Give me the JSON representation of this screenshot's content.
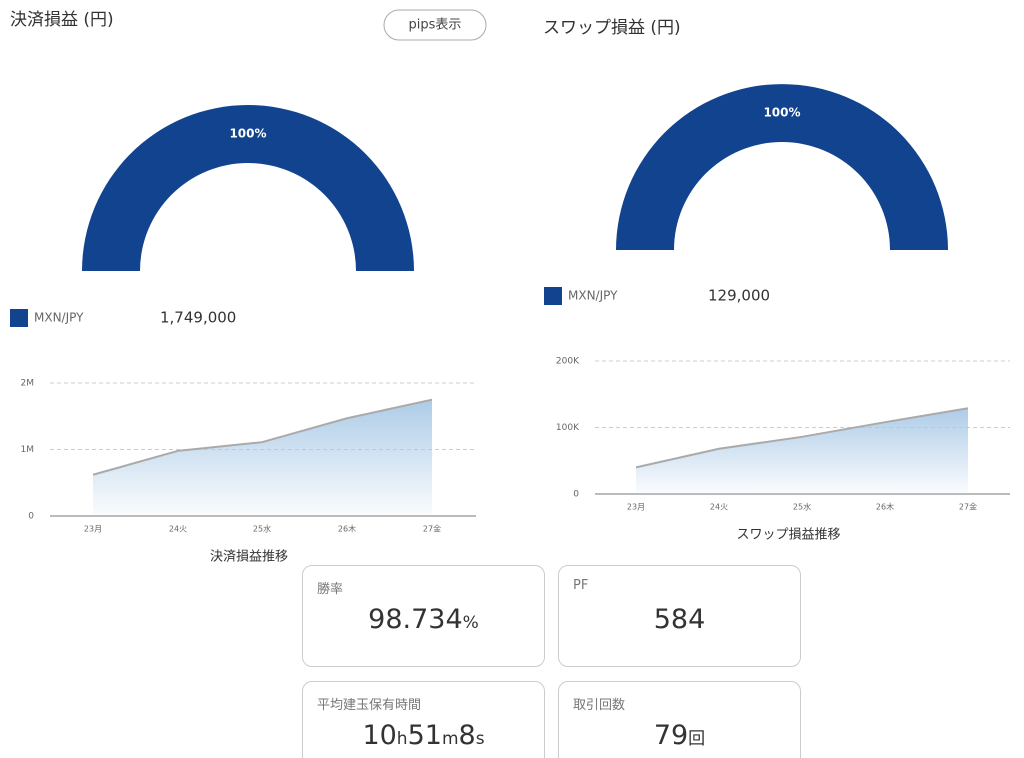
{
  "button": "pips表示",
  "panels": [
    {
      "title": "決済損益 (円)",
      "gauge": {
        "type": "pie",
        "series": [
          {
            "name": "MXN/JPY",
            "color": "#12438e",
            "values": [
              100
            ],
            "value_labels": [
              "100%"
            ]
          }
        ]
      },
      "total": "1,749,000",
      "trend": {
        "type": "area",
        "title": "決済損益推移",
        "categories": [
          "23月",
          "24火",
          "25水",
          "26木",
          "27金"
        ],
        "series": [
          {
            "name": "決済損益",
            "color": "#a9c9e6",
            "line_color": "#aaaaaa",
            "values": [
              620000,
              980000,
              1110000,
              1470000,
              1749000
            ]
          }
        ],
        "ylim": [
          0,
          2000000
        ],
        "yticks": [
          0,
          {
            "value": 1000000,
            "label": "1M"
          },
          {
            "value": 2000000,
            "label": "2M"
          }
        ],
        "grid": true
      }
    },
    {
      "title": "スワップ損益 (円)",
      "gauge": {
        "type": "pie",
        "series": [
          {
            "name": "MXN/JPY",
            "color": "#12438e",
            "values": [
              100
            ],
            "value_labels": [
              "100%"
            ]
          }
        ]
      },
      "total": "129,000",
      "trend": {
        "type": "area",
        "title": "スワップ損益推移",
        "categories": [
          "23月",
          "24火",
          "25水",
          "26木",
          "27金"
        ],
        "series": [
          {
            "name": "スワップ損益",
            "color": "#a9c9e6",
            "line_color": "#aaaaaa",
            "values": [
              40000,
              68000,
              86000,
              108000,
              129000
            ]
          }
        ],
        "ylim": [
          0,
          200000
        ],
        "yticks": [
          0,
          {
            "value": 100000,
            "label": "100K"
          },
          {
            "value": 200000,
            "label": "200K"
          }
        ],
        "grid": true
      }
    }
  ],
  "stats": [
    {
      "label": "勝率",
      "parts": [
        {
          "n": "98.734",
          "u": "%"
        }
      ]
    },
    {
      "label": "PF",
      "parts": [
        {
          "n": "584"
        }
      ]
    },
    {
      "label": "平均建玉保有時間",
      "parts": [
        {
          "n": "10",
          "u": "h"
        },
        {
          "n": "51",
          "u": "m"
        },
        {
          "n": "8",
          "u": "s"
        }
      ]
    },
    {
      "label": "取引回数",
      "parts": [
        {
          "n": "79",
          "u": "回"
        }
      ]
    }
  ]
}
